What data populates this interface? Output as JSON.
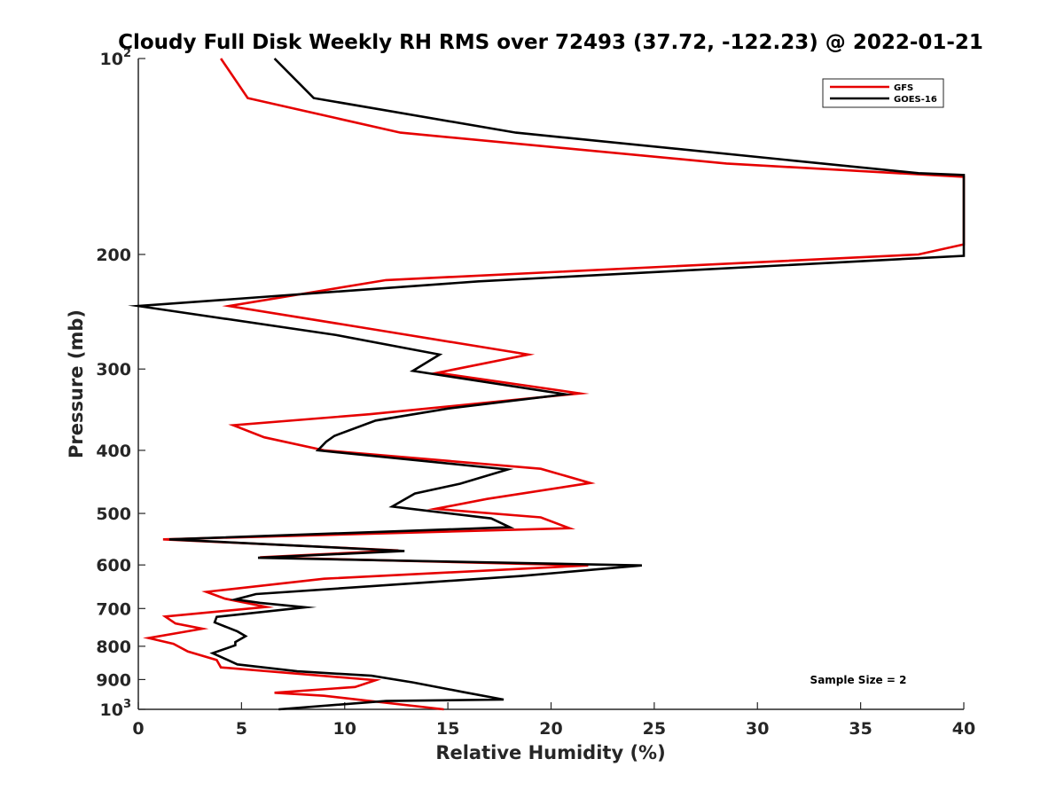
{
  "chart_data": {
    "type": "line",
    "title": "Cloudy Full Disk Weekly RH RMS over 72493 (37.72, -122.23) @ 2022-01-21",
    "xlabel": "Relative Humidity (%)",
    "ylabel": "Pressure (mb)",
    "xlim": [
      0,
      40
    ],
    "ylim": [
      100,
      1000
    ],
    "yscale": "log",
    "yreversed": true,
    "grid": false,
    "legend_position": "top-right",
    "x_ticks": [
      0,
      5,
      10,
      15,
      20,
      25,
      30,
      35,
      40
    ],
    "y_ticks": [
      {
        "value": 100,
        "label": "10",
        "sup": "2"
      },
      {
        "value": 200,
        "label": "200",
        "sup": ""
      },
      {
        "value": 300,
        "label": "300",
        "sup": ""
      },
      {
        "value": 400,
        "label": "400",
        "sup": ""
      },
      {
        "value": 500,
        "label": "500",
        "sup": ""
      },
      {
        "value": 600,
        "label": "600",
        "sup": ""
      },
      {
        "value": 700,
        "label": "700",
        "sup": ""
      },
      {
        "value": 800,
        "label": "800",
        "sup": ""
      },
      {
        "value": 900,
        "label": "900",
        "sup": ""
      },
      {
        "value": 1000,
        "label": "10",
        "sup": "3"
      }
    ],
    "annotation": "Sample Size = 2",
    "series": [
      {
        "name": "GFS",
        "color": "#e60000",
        "points": [
          [
            4.0,
            100
          ],
          [
            5.3,
            115
          ],
          [
            12.7,
            130
          ],
          [
            28.5,
            145
          ],
          [
            40.0,
            152
          ],
          [
            40.0,
            193
          ],
          [
            37.8,
            200
          ],
          [
            12.0,
            219
          ],
          [
            4.4,
            240
          ],
          [
            11.8,
            262
          ],
          [
            18.9,
            285
          ],
          [
            14.5,
            304
          ],
          [
            21.4,
            327
          ],
          [
            11.2,
            352
          ],
          [
            4.6,
            366
          ],
          [
            6.1,
            382
          ],
          [
            9.0,
            400
          ],
          [
            19.5,
            427
          ],
          [
            21.9,
            449
          ],
          [
            16.9,
            475
          ],
          [
            14.4,
            492
          ],
          [
            19.5,
            507
          ],
          [
            20.9,
            527
          ],
          [
            1.2,
            548
          ],
          [
            12.6,
            570
          ],
          [
            5.9,
            584
          ],
          [
            21.8,
            601
          ],
          [
            9.0,
            630
          ],
          [
            3.3,
            660
          ],
          [
            4.2,
            676
          ],
          [
            6.2,
            696
          ],
          [
            1.3,
            720
          ],
          [
            1.8,
            738
          ],
          [
            3.1,
            752
          ],
          [
            0.5,
            777
          ],
          [
            1.7,
            793
          ],
          [
            2.4,
            815
          ],
          [
            3.8,
            840
          ],
          [
            4.0,
            862
          ],
          [
            11.5,
            902
          ],
          [
            10.5,
            924
          ],
          [
            6.6,
            943
          ],
          [
            9.0,
            953
          ],
          [
            14.8,
            1000
          ]
        ]
      },
      {
        "name": "GOES-16",
        "color": "#000000",
        "points": [
          [
            6.6,
            100
          ],
          [
            8.5,
            115
          ],
          [
            18.3,
            130
          ],
          [
            37.8,
            150
          ],
          [
            40.0,
            151
          ],
          [
            40.0,
            201
          ],
          [
            16.5,
            220
          ],
          [
            0.0,
            240
          ],
          [
            9.6,
            266
          ],
          [
            14.6,
            285
          ],
          [
            13.3,
            302
          ],
          [
            20.7,
            328
          ],
          [
            15.0,
            345
          ],
          [
            11.5,
            360
          ],
          [
            9.5,
            380
          ],
          [
            9.1,
            388
          ],
          [
            8.7,
            400
          ],
          [
            17.9,
            428
          ],
          [
            15.6,
            450
          ],
          [
            13.4,
            466
          ],
          [
            12.3,
            488
          ],
          [
            17.1,
            509
          ],
          [
            18.0,
            525
          ],
          [
            1.5,
            548
          ],
          [
            12.9,
            571
          ],
          [
            5.8,
            585
          ],
          [
            24.4,
            601
          ],
          [
            18.5,
            624
          ],
          [
            5.7,
            665
          ],
          [
            4.7,
            678
          ],
          [
            5.9,
            686
          ],
          [
            8.1,
            697
          ],
          [
            3.8,
            721
          ],
          [
            3.7,
            735
          ],
          [
            4.8,
            759
          ],
          [
            5.2,
            772
          ],
          [
            4.7,
            788
          ],
          [
            4.7,
            797
          ],
          [
            3.6,
            820
          ],
          [
            4.8,
            853
          ],
          [
            7.7,
            874
          ],
          [
            11.3,
            888
          ],
          [
            13.3,
            909
          ],
          [
            15.7,
            940
          ],
          [
            17.7,
            966
          ],
          [
            12.0,
            971
          ],
          [
            6.8,
            1000
          ]
        ]
      }
    ]
  }
}
